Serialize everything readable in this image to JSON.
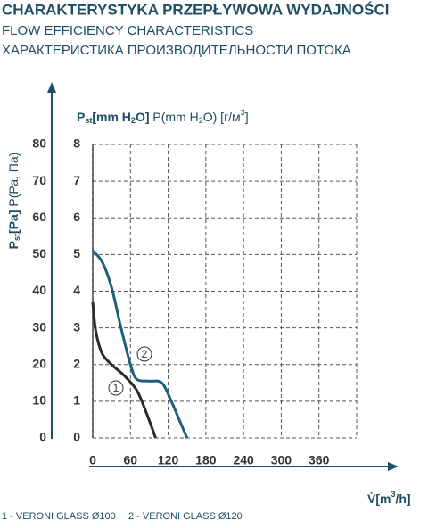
{
  "chart_data": {
    "type": "line",
    "title": "CHARAKTERYSTYKA PRZEPŁYWOWA WYDAJNOŚCI",
    "subtitle": "FLOW EFFICIENCY CHARACTERISTICS",
    "subtitle2": "ХАРАКТЕРИСТИКА ПРОИЗВОДИТЕЛЬНОСТИ ПОТОКА",
    "y_label": [
      "P",
      "st",
      "[Pa]",
      " P(Ра, Па)"
    ],
    "y2_label": [
      "P",
      "st",
      "[mm H",
      "2",
      "O]",
      " P(mm H",
      "2",
      "O) [г/м",
      "3",
      "]"
    ],
    "x_label": [
      "V̇[m",
      "3",
      "/h]"
    ],
    "xlim": [
      0,
      420
    ],
    "xticks": [
      0,
      60,
      120,
      180,
      240,
      300,
      360
    ],
    "ylim": [
      0,
      80
    ],
    "yticks": [
      0,
      10,
      20,
      30,
      40,
      50,
      60,
      70,
      80
    ],
    "y2lim": [
      0,
      8
    ],
    "y2ticks": [
      0,
      1,
      2,
      3,
      4,
      5,
      6,
      7,
      8
    ],
    "grid": true,
    "series": [
      {
        "name": "1 - VERONI GLASS Ø100",
        "tag": "1",
        "color": "#2a2a2a",
        "axis": "y2",
        "x": [
          0,
          5,
          15,
          30,
          50,
          70,
          85,
          100
        ],
        "values": [
          3.7,
          2.9,
          2.3,
          2.0,
          1.7,
          1.3,
          0.7,
          0
        ]
      },
      {
        "name": "2 - VERONI GLASS Ø120",
        "tag": "2",
        "color": "#1f5f7a",
        "axis": "y2",
        "x": [
          0,
          15,
          30,
          45,
          60,
          70,
          90,
          110,
          125,
          140,
          150
        ],
        "values": [
          5.1,
          4.8,
          4.1,
          3.0,
          2.0,
          1.6,
          1.55,
          1.5,
          1.0,
          0.4,
          0
        ]
      }
    ]
  }
}
